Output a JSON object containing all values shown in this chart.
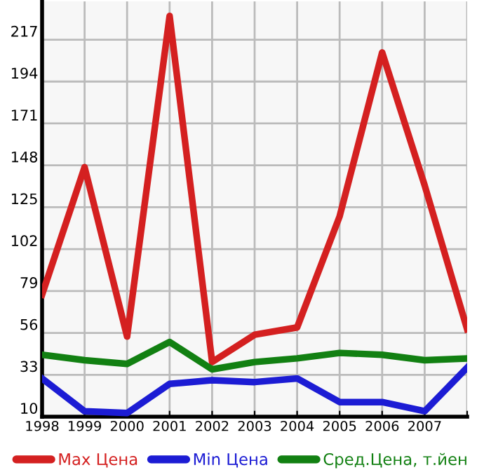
{
  "chart_data": {
    "type": "line",
    "categories": [
      "1998",
      "1999",
      "2000",
      "2001",
      "2002",
      "2003",
      "2004",
      "2005",
      "2006",
      "2007",
      null
    ],
    "series": [
      {
        "name": "Max Цена",
        "color": "#d42020",
        "values": [
          77,
          147,
          54,
          230,
          40,
          55,
          59,
          120,
          210,
          137,
          58
        ]
      },
      {
        "name": "Min Цена",
        "color": "#1c1cd4",
        "values": [
          31,
          13,
          12,
          28,
          30,
          29,
          31,
          18,
          18,
          13,
          37
        ]
      },
      {
        "name": "Сред.Цена, т.йен",
        "color": "#128012",
        "values": [
          44,
          41,
          39,
          51,
          36,
          40,
          42,
          45,
          44,
          41,
          42
        ]
      }
    ],
    "ylim": [
      10,
      238
    ],
    "yticks": [
      10,
      33,
      56,
      79,
      102,
      125,
      148,
      171,
      194,
      217
    ],
    "grid": true,
    "legend": "bottom",
    "marker": "none",
    "line_style": "solid"
  }
}
